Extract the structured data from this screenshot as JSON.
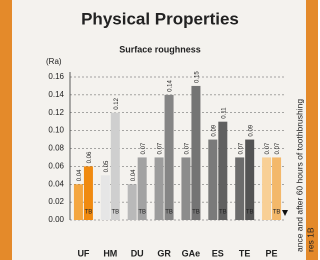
{
  "header": {
    "title": "Physical Properties"
  },
  "side_text": [
    "ance and after 60 hours of toothbrushing",
    "res 1B"
  ],
  "chart_data": {
    "type": "bar",
    "title": "Surface roughness",
    "y_label": "(Ra)",
    "categories": [
      "UF",
      "HM",
      "DU",
      "GR",
      "GAe",
      "ES",
      "TE",
      "PE"
    ],
    "series": [
      {
        "colors": [
          "#f4a640",
          "#e6e6e6",
          "#b9b9b9",
          "#9c9c9c",
          "#8c8c8c",
          "#7a7a7a",
          "#6c6c6c",
          "#f8cf95"
        ],
        "values": [
          0.04,
          0.05,
          0.04,
          0.07,
          0.07,
          0.09,
          0.07,
          0.07
        ]
      },
      {
        "name": "TB",
        "colors": [
          "#f08a10",
          "#cfcfcf",
          "#a2a2a2",
          "#858585",
          "#747474",
          "#606060",
          "#545454",
          "#f3b86a"
        ],
        "values": [
          0.06,
          0.12,
          0.07,
          0.14,
          0.15,
          0.11,
          0.09,
          0.07
        ]
      }
    ],
    "ylim": [
      0,
      0.16
    ],
    "yticks": [
      {
        "value": 0,
        "label": "0.00"
      },
      0.02,
      0.04,
      0.06,
      0.08,
      {
        "value": 0.1,
        "label": "0.10"
      },
      0.12,
      0.14,
      0.16
    ],
    "grid": true
  }
}
